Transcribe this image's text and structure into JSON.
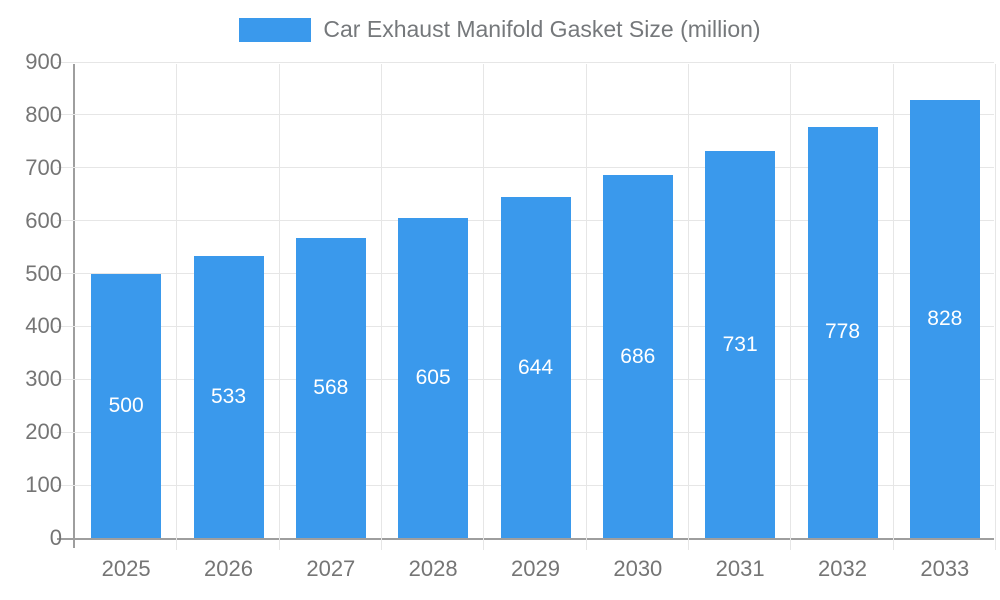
{
  "legend": {
    "series_label": "Car Exhaust Manifold Gasket Size (million)"
  },
  "chart_data": {
    "type": "bar",
    "title": "Car Exhaust Manifold Gasket Size (million)",
    "categories": [
      "2025",
      "2026",
      "2027",
      "2028",
      "2029",
      "2030",
      "2031",
      "2032",
      "2033"
    ],
    "values": [
      500,
      533,
      568,
      605,
      644,
      686,
      731,
      778,
      828
    ],
    "xlabel": "",
    "ylabel": "",
    "ylim": [
      0,
      900
    ],
    "yticks": [
      0,
      100,
      200,
      300,
      400,
      500,
      600,
      700,
      800,
      900
    ],
    "grid": true,
    "legend_position": "top",
    "bar_color": "#3A99EC",
    "value_label_color": "#ffffff",
    "axis_text_color": "#757575",
    "grid_color": "#e6e6e6",
    "axis_line_color": "#9e9e9e"
  }
}
